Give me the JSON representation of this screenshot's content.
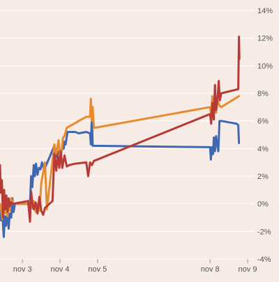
{
  "chart_data": {
    "type": "line",
    "title": "",
    "xlabel": "",
    "ylabel": "",
    "ylim": [
      -4,
      14
    ],
    "grid": true,
    "y_axis_side": "right",
    "background": "#f7ebe6",
    "x_ticks": [
      {
        "x": 3.2,
        "label": "nov 3"
      },
      {
        "x": 4.2,
        "label": "nov 4"
      },
      {
        "x": 5.2,
        "label": "nov 5"
      },
      {
        "x": 8.2,
        "label": "nov 8"
      },
      {
        "x": 9.2,
        "label": "nov 9"
      }
    ],
    "y_ticks": [
      {
        "y": -4,
        "label": "-4%"
      },
      {
        "y": -2,
        "label": "-2%"
      },
      {
        "y": 0,
        "label": "0%"
      },
      {
        "y": 2,
        "label": "2%"
      },
      {
        "y": 4,
        "label": "4%"
      },
      {
        "y": 6,
        "label": "6%"
      },
      {
        "y": 8,
        "label": "8%"
      },
      {
        "y": 10,
        "label": "10%"
      },
      {
        "y": 12,
        "label": "12%"
      },
      {
        "y": 14,
        "label": "14%"
      }
    ],
    "series": [
      {
        "color": "#4068b0",
        "points": [
          [
            2.6,
            0
          ],
          [
            2.63,
            -1.2
          ],
          [
            2.66,
            -0.6
          ],
          [
            2.7,
            -2.4
          ],
          [
            2.73,
            -0.9
          ],
          [
            2.76,
            -1.6
          ],
          [
            2.8,
            -0.5
          ],
          [
            2.83,
            -1.8
          ],
          [
            2.86,
            -0.7
          ],
          [
            2.9,
            -1.0
          ],
          [
            2.93,
            0.4
          ],
          [
            2.96,
            -0.6
          ],
          [
            3.0,
            0
          ],
          [
            3.4,
            0
          ],
          [
            3.43,
            2.0
          ],
          [
            3.46,
            1.2
          ],
          [
            3.5,
            2.8
          ],
          [
            3.53,
            2.0
          ],
          [
            3.56,
            2.9
          ],
          [
            3.6,
            2.1
          ],
          [
            3.64,
            2.6
          ],
          [
            3.68,
            2.5
          ],
          [
            3.72,
            3.0
          ],
          [
            3.76,
            2.6
          ],
          [
            3.8,
            2.6
          ],
          [
            4.05,
            4.2
          ],
          [
            4.1,
            3.4
          ],
          [
            4.16,
            3.8
          ],
          [
            4.22,
            3.9
          ],
          [
            4.3,
            4.0
          ],
          [
            4.32,
            4.5
          ],
          [
            4.35,
            4.3
          ],
          [
            4.4,
            5.2
          ],
          [
            4.6,
            5.2
          ],
          [
            4.7,
            5.1
          ],
          [
            4.9,
            5.2
          ],
          [
            5.0,
            5.1
          ],
          [
            5.02,
            4.3
          ],
          [
            5.05,
            6.4
          ],
          [
            5.07,
            4.2
          ],
          [
            5.1,
            4.2
          ],
          [
            8.2,
            4.1
          ],
          [
            8.22,
            3.2
          ],
          [
            8.25,
            4.1
          ],
          [
            8.28,
            3.6
          ],
          [
            8.3,
            4.8
          ],
          [
            8.33,
            3.8
          ],
          [
            8.36,
            4.9
          ],
          [
            8.4,
            4.1
          ],
          [
            8.42,
            3.8
          ],
          [
            8.45,
            6.0
          ],
          [
            8.5,
            6.0
          ],
          [
            8.9,
            5.8
          ],
          [
            8.95,
            5.7
          ],
          [
            8.97,
            4.4
          ]
        ]
      },
      {
        "color": "#e68c2e",
        "points": [
          [
            2.6,
            0
          ],
          [
            2.63,
            -0.4
          ],
          [
            2.66,
            -1.1
          ],
          [
            2.7,
            0.2
          ],
          [
            2.73,
            -0.7
          ],
          [
            2.76,
            -0.2
          ],
          [
            2.8,
            -0.9
          ],
          [
            2.83,
            0.3
          ],
          [
            2.86,
            -0.5
          ],
          [
            2.9,
            0.4
          ],
          [
            2.95,
            0
          ],
          [
            3.4,
            0
          ],
          [
            3.43,
            0.4
          ],
          [
            3.46,
            -0.3
          ],
          [
            3.5,
            0.2
          ],
          [
            3.55,
            -0.6
          ],
          [
            3.6,
            0
          ],
          [
            3.65,
            -0.5
          ],
          [
            3.7,
            1.5
          ],
          [
            3.8,
            3.0
          ],
          [
            3.85,
            -0.4
          ],
          [
            4.05,
            4.3
          ],
          [
            4.1,
            3.6
          ],
          [
            4.16,
            4.6
          ],
          [
            4.22,
            3.2
          ],
          [
            4.28,
            4.8
          ],
          [
            4.32,
            4.9
          ],
          [
            4.38,
            5.5
          ],
          [
            4.9,
            6.3
          ],
          [
            5.0,
            6.3
          ],
          [
            5.02,
            7.6
          ],
          [
            5.05,
            6.0
          ],
          [
            5.07,
            7.0
          ],
          [
            5.1,
            5.6
          ],
          [
            5.12,
            5.5
          ],
          [
            8.2,
            7.0
          ],
          [
            8.23,
            6.4
          ],
          [
            8.26,
            7.8
          ],
          [
            8.3,
            6.8
          ],
          [
            8.33,
            7.9
          ],
          [
            8.36,
            6.6
          ],
          [
            8.4,
            7.5
          ],
          [
            8.45,
            7.1
          ],
          [
            8.5,
            7.0
          ],
          [
            8.97,
            7.8
          ]
        ]
      },
      {
        "color": "#b83a36",
        "points": [
          [
            2.6,
            2.8
          ],
          [
            2.62,
            0.8
          ],
          [
            2.65,
            1.7
          ],
          [
            2.68,
            -1.0
          ],
          [
            2.71,
            1.0
          ],
          [
            2.74,
            -0.4
          ],
          [
            2.77,
            0.6
          ],
          [
            2.8,
            -0.6
          ],
          [
            2.83,
            0.4
          ],
          [
            2.86,
            -0.2
          ],
          [
            2.9,
            0.1
          ],
          [
            2.95,
            0
          ],
          [
            3.35,
            0.2
          ],
          [
            3.4,
            -1.3
          ],
          [
            3.43,
            0.9
          ],
          [
            3.46,
            0.1
          ],
          [
            3.5,
            -0.4
          ],
          [
            3.55,
            0.1
          ],
          [
            3.6,
            -0.7
          ],
          [
            3.65,
            0.5
          ],
          [
            3.7,
            -0.5
          ],
          [
            3.75,
            -0.8
          ],
          [
            3.8,
            -0.3
          ],
          [
            4.0,
            0.2
          ],
          [
            4.05,
            3.6
          ],
          [
            4.1,
            2.4
          ],
          [
            4.14,
            3.6
          ],
          [
            4.18,
            2.6
          ],
          [
            4.22,
            3.8
          ],
          [
            4.26,
            2.6
          ],
          [
            4.32,
            3.5
          ],
          [
            4.38,
            2.7
          ],
          [
            4.45,
            2.8
          ],
          [
            4.6,
            2.9
          ],
          [
            4.9,
            3.0
          ],
          [
            4.95,
            2.0
          ],
          [
            5.0,
            3.0
          ],
          [
            5.05,
            2.8
          ],
          [
            5.1,
            3.1
          ],
          [
            8.2,
            6.5
          ],
          [
            8.23,
            5.8
          ],
          [
            8.26,
            7.3
          ],
          [
            8.3,
            6.1
          ],
          [
            8.33,
            8.6
          ],
          [
            8.36,
            6.8
          ],
          [
            8.4,
            7.7
          ],
          [
            8.43,
            8.9
          ],
          [
            8.46,
            7.5
          ],
          [
            8.5,
            8.0
          ],
          [
            8.95,
            8.3
          ],
          [
            8.97,
            12.1
          ],
          [
            8.98,
            10.5
          ]
        ]
      }
    ]
  }
}
